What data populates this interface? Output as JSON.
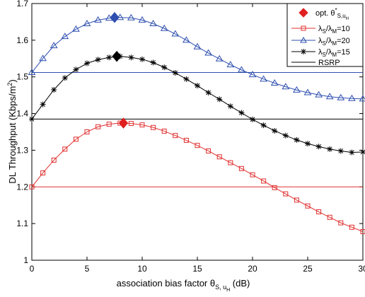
{
  "chart_data": {
    "type": "line",
    "title": "",
    "xlabel": "association bias factor θ",
    "xlabel_sub": "S, u",
    "xlabel_subsub": "H",
    "xlabel_unit": " (dB)",
    "ylabel": "DL Throughput (Kbps/m",
    "ylabel_sup": "2",
    "ylabel_end": ")",
    "xlim": [
      0,
      30
    ],
    "ylim": [
      1.0,
      1.7
    ],
    "xticks": [
      0,
      5,
      10,
      15,
      20,
      25,
      30
    ],
    "yticks": [
      1.0,
      1.1,
      1.2,
      1.3,
      1.4,
      1.5,
      1.6,
      1.7
    ],
    "grid": false,
    "legend_position": "top-right",
    "x": [
      0,
      1,
      2,
      3,
      4,
      5,
      6,
      7,
      8,
      9,
      10,
      11,
      12,
      13,
      14,
      15,
      16,
      17,
      18,
      19,
      20,
      21,
      22,
      23,
      24,
      25,
      26,
      27,
      28,
      29,
      30
    ],
    "series": [
      {
        "name": "λS/λM=10",
        "legend_parts": [
          "λ",
          "S",
          "/λ",
          "M",
          "=10"
        ],
        "color": "#e03030",
        "marker": "square",
        "values": [
          1.2,
          1.238,
          1.273,
          1.303,
          1.33,
          1.35,
          1.364,
          1.371,
          1.374,
          1.373,
          1.369,
          1.362,
          1.352,
          1.34,
          1.327,
          1.313,
          1.298,
          1.282,
          1.266,
          1.25,
          1.233,
          1.216,
          1.198,
          1.181,
          1.164,
          1.148,
          1.132,
          1.117,
          1.102,
          1.09,
          1.078
        ]
      },
      {
        "name": "λS/λM=20",
        "legend_parts": [
          "λ",
          "S",
          "/λ",
          "M",
          "=20"
        ],
        "color": "#2e4fb0",
        "marker": "triangle",
        "values": [
          1.512,
          1.55,
          1.585,
          1.61,
          1.63,
          1.645,
          1.655,
          1.66,
          1.662,
          1.661,
          1.655,
          1.645,
          1.632,
          1.617,
          1.6,
          1.582,
          1.565,
          1.549,
          1.533,
          1.519,
          1.506,
          1.494,
          1.483,
          1.473,
          1.464,
          1.457,
          1.451,
          1.446,
          1.443,
          1.441,
          1.44
        ]
      },
      {
        "name": "λS/λM=15",
        "legend_parts": [
          "λ",
          "S",
          "/λ",
          "M",
          "=15"
        ],
        "color": "#000000",
        "marker": "asterisk",
        "values": [
          1.385,
          1.425,
          1.465,
          1.497,
          1.52,
          1.537,
          1.547,
          1.553,
          1.556,
          1.553,
          1.548,
          1.539,
          1.526,
          1.511,
          1.494,
          1.476,
          1.457,
          1.439,
          1.42,
          1.402,
          1.384,
          1.368,
          1.353,
          1.34,
          1.328,
          1.318,
          1.31,
          1.303,
          1.298,
          1.294,
          1.295
        ]
      }
    ],
    "reference_lines": [
      {
        "name": "RSRP",
        "color": "#000000",
        "y": 1.385
      },
      {
        "y": 1.512,
        "color": "#2e4fb0"
      },
      {
        "y": 1.2,
        "color": "#e03030"
      }
    ],
    "optimum": {
      "name": "opt. θ",
      "legend_parts": [
        "opt. θ",
        "*",
        "S,u",
        "H"
      ],
      "color": "#e02020",
      "marker": "diamond",
      "points": [
        {
          "x": 7.5,
          "y": 1.662,
          "color": "#2e4fb0"
        },
        {
          "x": 7.7,
          "y": 1.556,
          "color": "#000000"
        },
        {
          "x": 8.3,
          "y": 1.374,
          "color": "#e02020"
        }
      ]
    }
  }
}
